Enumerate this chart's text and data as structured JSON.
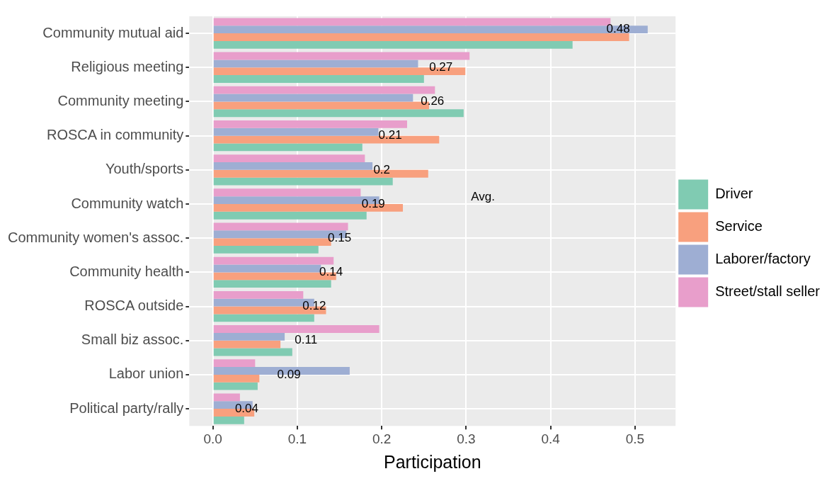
{
  "chart_data": {
    "type": "bar",
    "orientation": "horizontal",
    "xlabel": "Participation",
    "categories": [
      "Community mutual aid",
      "Religious meeting",
      "Community meeting",
      "ROSCA in community",
      "Youth/sports",
      "Community watch",
      "Community women's assoc.",
      "Community health",
      "ROSCA outside",
      "Small biz assoc.",
      "Labor union",
      "Political party/rally"
    ],
    "series": [
      {
        "name": "Driver",
        "color": "#80cbb2",
        "values": [
          0.426,
          0.25,
          0.297,
          0.177,
          0.213,
          0.182,
          0.125,
          0.14,
          0.12,
          0.094,
          0.053,
          0.037
        ]
      },
      {
        "name": "Service",
        "color": "#f8a07e",
        "values": [
          0.493,
          0.299,
          0.256,
          0.268,
          0.255,
          0.225,
          0.14,
          0.146,
          0.134,
          0.08,
          0.055,
          0.049
        ]
      },
      {
        "name": "Laborer/factory",
        "color": "#9eaed3",
        "values": [
          0.515,
          0.243,
          0.237,
          0.196,
          0.189,
          0.197,
          0.158,
          0.128,
          0.12,
          0.085,
          0.162,
          0.047
        ]
      },
      {
        "name": "Street/stall seller",
        "color": "#e89ecb",
        "values": [
          0.471,
          0.304,
          0.263,
          0.23,
          0.18,
          0.175,
          0.16,
          0.143,
          0.107,
          0.197,
          0.05,
          0.032
        ]
      }
    ],
    "xlim": [
      -0.028,
      0.548
    ],
    "xticks": [
      {
        "value": 0,
        "label": "0.0"
      },
      0.1,
      0.2,
      0.3,
      0.4,
      0.5
    ],
    "grid": true,
    "legend": "right",
    "annotations": [
      {
        "text": "0.48",
        "x": 0.48,
        "y": "Community mutual aid"
      },
      {
        "text": "0.27",
        "x": 0.27,
        "y": "Religious meeting"
      },
      {
        "text": "0.26",
        "x": 0.26,
        "y": "Community meeting"
      },
      {
        "text": "0.21",
        "x": 0.21,
        "y": "ROSCA in community"
      },
      {
        "text": "0.2",
        "x": 0.2,
        "y": "Youth/sports"
      },
      {
        "text": "0.19",
        "x": 0.19,
        "y": "Community watch"
      },
      {
        "text": "0.15",
        "x": 0.15,
        "y": "Community women's assoc."
      },
      {
        "text": "0.14",
        "x": 0.14,
        "y": "Community health"
      },
      {
        "text": "0.12",
        "x": 0.12,
        "y": "ROSCA outside"
      },
      "0.11",
      {
        "text": "0.09",
        "x": 0.09,
        "y": "Labor union"
      },
      {
        "text": "0.04",
        "x": 0.04,
        "y": "Political party/rally"
      },
      "Avg."
    ]
  }
}
